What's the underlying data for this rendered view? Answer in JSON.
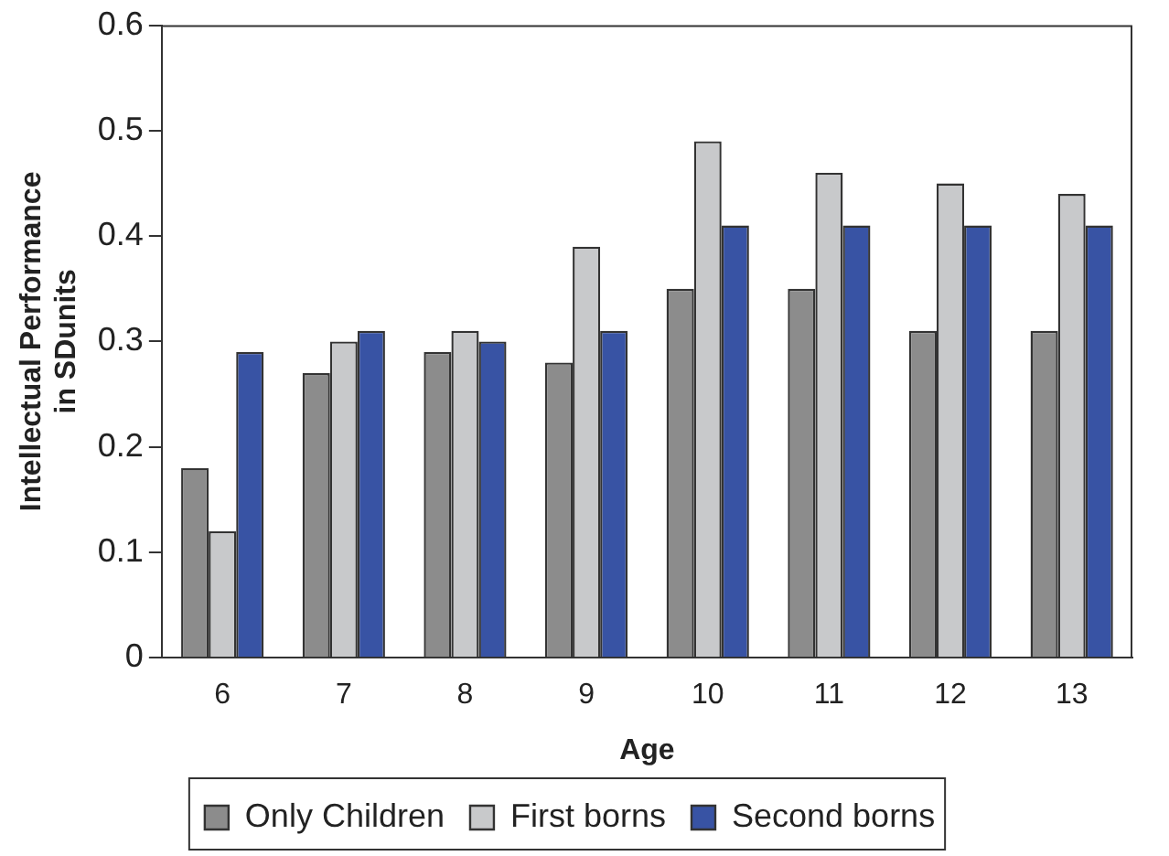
{
  "chart_data": {
    "type": "bar",
    "xlabel": "Age",
    "ylabel": "Intellectual Performance\nin SDunits",
    "categories": [
      "6",
      "7",
      "8",
      "9",
      "10",
      "11",
      "12",
      "13"
    ],
    "series": [
      {
        "name": "Only Children",
        "color": "#8c8c8c",
        "values": [
          0.18,
          0.27,
          0.29,
          0.28,
          0.35,
          0.35,
          0.31,
          0.31
        ]
      },
      {
        "name": "First borns",
        "color": "#c8c9cb",
        "values": [
          0.12,
          0.3,
          0.31,
          0.39,
          0.49,
          0.46,
          0.45,
          0.44
        ]
      },
      {
        "name": "Second borns",
        "color": "#3853a4",
        "values": [
          0.29,
          0.31,
          0.3,
          0.31,
          0.41,
          0.41,
          0.41,
          0.41
        ]
      }
    ],
    "ylim": [
      0,
      0.6
    ],
    "yticks": [
      0,
      0.1,
      0.2,
      0.3,
      0.4,
      0.5,
      0.6
    ],
    "grid": false,
    "legend": "bottom"
  }
}
